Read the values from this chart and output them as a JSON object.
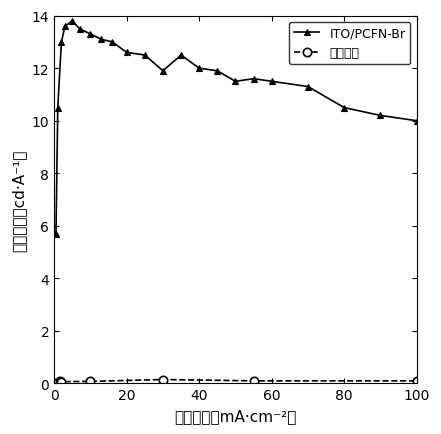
{
  "series1_label": "ITO/PCFN-Br",
  "series1_x": [
    0.5,
    1.0,
    2.0,
    3.0,
    5.0,
    7.0,
    10.0,
    13.0,
    16.0,
    20.0,
    25.0,
    30.0,
    35.0,
    40.0,
    45.0,
    50.0,
    55.0,
    60.0,
    70.0,
    80.0,
    90.0,
    100.0
  ],
  "series1_y": [
    5.7,
    10.5,
    13.0,
    13.6,
    13.8,
    13.5,
    13.3,
    13.1,
    13.0,
    12.6,
    12.5,
    11.9,
    12.5,
    12.0,
    11.9,
    11.5,
    11.6,
    11.5,
    11.3,
    10.5,
    10.2,
    10.0
  ],
  "series1_marker": "^",
  "series1_linestyle": "-",
  "series1_color": "#000000",
  "series2_label": "对照器件",
  "series2_x": [
    0.5,
    1.5,
    2.0,
    10.0,
    30.0,
    55.0,
    100.0
  ],
  "series2_y": [
    0.02,
    0.08,
    0.07,
    0.08,
    0.15,
    0.1,
    0.1
  ],
  "series2_marker": "o",
  "series2_linestyle": "--",
  "series2_color": "#000000",
  "xlabel": "电流密度（mA·cm⁻²）",
  "ylabel": "电流效率（cd·A⁻¹）",
  "xlim": [
    0,
    100
  ],
  "ylim": [
    0,
    14
  ],
  "yticks": [
    0,
    2,
    4,
    6,
    8,
    10,
    12,
    14
  ],
  "xticks": [
    0,
    20,
    40,
    60,
    80,
    100
  ],
  "background_color": "#ffffff",
  "legend_loc": "upper right"
}
